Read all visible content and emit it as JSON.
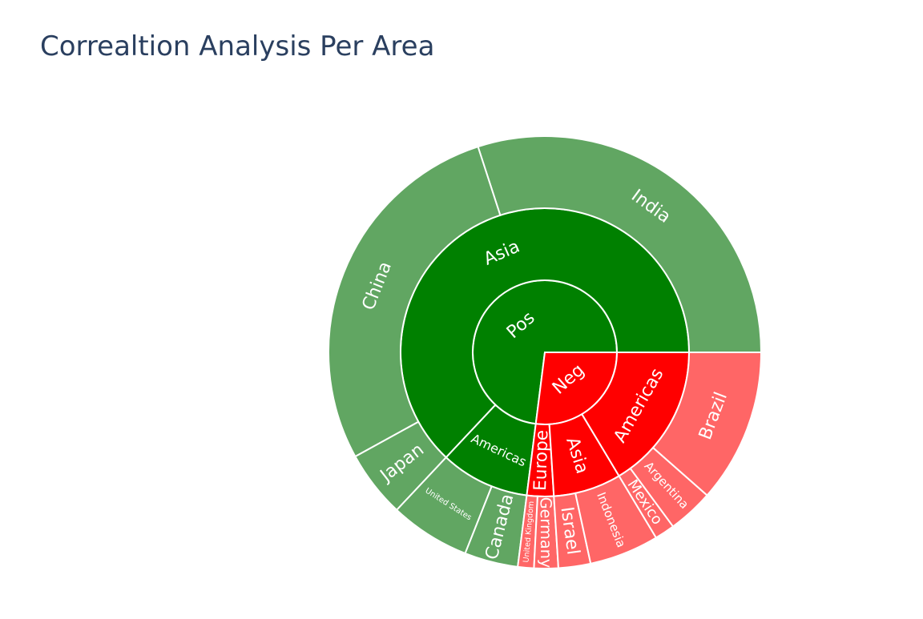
{
  "title": "Correaltion Analysis Per Area",
  "chart_data": {
    "type": "sunburst",
    "title": "Correaltion Analysis Per Area",
    "colors": {
      "Pos_inner": "#008000",
      "Pos_outer": "#61a662",
      "Neg_inner": "#ff0000",
      "Neg_outer": "#ff6666"
    },
    "nodes": [
      {
        "id": "Pos",
        "label": "Pos",
        "parent": "",
        "value": 73
      },
      {
        "id": "Neg",
        "label": "Neg",
        "parent": "",
        "value": 27
      },
      {
        "id": "Pos/Asia",
        "label": "Asia",
        "parent": "Pos",
        "value": 63
      },
      {
        "id": "Pos/Americas",
        "label": "Americas",
        "parent": "Pos",
        "value": 10
      },
      {
        "id": "Pos/Asia/India",
        "label": "India",
        "parent": "Pos/Asia",
        "value": 30
      },
      {
        "id": "Pos/Asia/China",
        "label": "China",
        "parent": "Pos/Asia",
        "value": 28
      },
      {
        "id": "Pos/Asia/Japan",
        "label": "Japan",
        "parent": "Pos/Asia",
        "value": 5
      },
      {
        "id": "Pos/Americas/United States",
        "label": "United States",
        "parent": "Pos/Americas",
        "value": 6
      },
      {
        "id": "Pos/Americas/Canada",
        "label": "Canada",
        "parent": "Pos/Americas",
        "value": 4
      },
      {
        "id": "Neg/Europe",
        "label": "Europe",
        "parent": "Neg",
        "value": 3
      },
      {
        "id": "Neg/Asia",
        "label": "Asia",
        "parent": "Neg",
        "value": 7.6
      },
      {
        "id": "Neg/Americas",
        "label": "Americas",
        "parent": "Neg",
        "value": 16.4
      },
      {
        "id": "Neg/Europe/United Kingdom",
        "label": "United Kingdom",
        "parent": "Neg/Europe",
        "value": 1.2
      },
      {
        "id": "Neg/Europe/Germany",
        "label": "Germany",
        "parent": "Neg/Europe",
        "value": 1.8
      },
      {
        "id": "Neg/Asia/Israel",
        "label": "Israel",
        "parent": "Neg/Asia",
        "value": 2.4
      },
      {
        "id": "Neg/Asia/Indonesia",
        "label": "Indonesia",
        "parent": "Neg/Asia",
        "value": 5.2
      },
      {
        "id": "Neg/Americas/Mexico",
        "label": "Mexico",
        "parent": "Neg/Americas",
        "value": 1.5
      },
      {
        "id": "Neg/Americas/Argentina",
        "label": "Argentina",
        "parent": "Neg/Americas",
        "value": 3.4
      },
      {
        "id": "Neg/Americas/Brazil",
        "label": "Brazil",
        "parent": "Neg/Americas",
        "value": 11.5
      }
    ]
  }
}
